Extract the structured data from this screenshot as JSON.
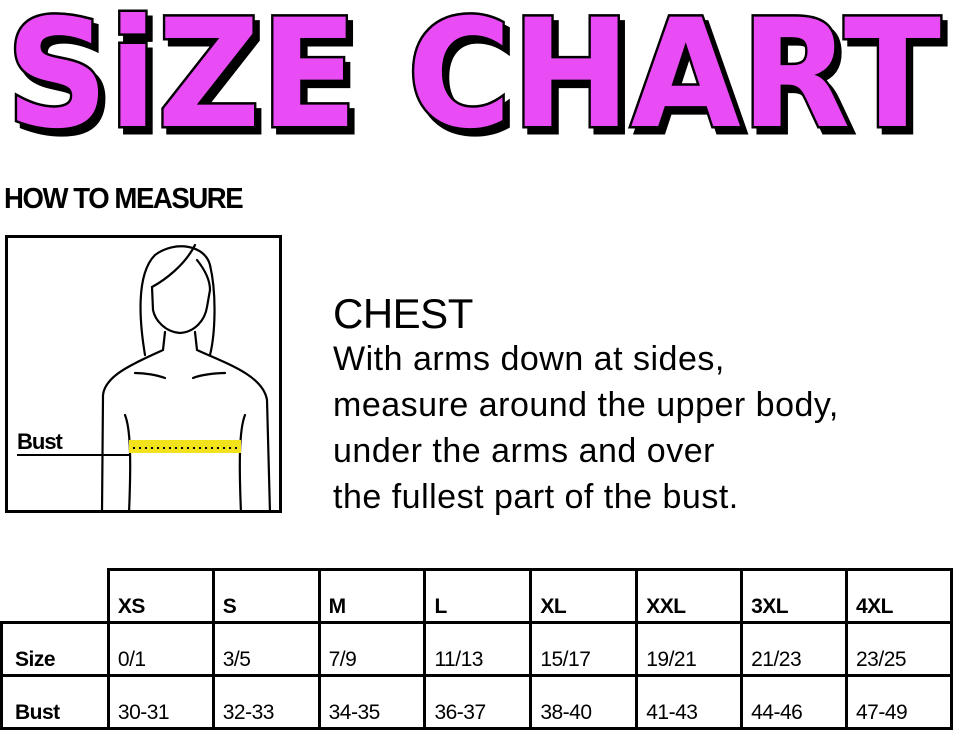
{
  "title": "SiZE CHART",
  "colors": {
    "title_fill": "#e94cf5",
    "title_outline": "#000000",
    "tape": "#f2e21c"
  },
  "how_to_measure": "HOW TO MEASURE",
  "figure": {
    "label": "Bust"
  },
  "chest": {
    "heading": "CHEST",
    "lines": [
      "With arms down at sides,",
      "measure around the upper body,",
      "under the arms and over",
      "the fullest part of the bust."
    ]
  },
  "table": {
    "columns": [
      "XS",
      "S",
      "M",
      "L",
      "XL",
      "XXL",
      "3XL",
      "4XL"
    ],
    "rows": [
      {
        "label": "Size",
        "values": [
          "0/1",
          "3/5",
          "7/9",
          "11/13",
          "15/17",
          "19/21",
          "21/23",
          "23/25"
        ]
      },
      {
        "label": "Bust",
        "values": [
          "30-31",
          "32-33",
          "34-35",
          "36-37",
          "38-40",
          "41-43",
          "44-46",
          "47-49"
        ]
      }
    ]
  }
}
